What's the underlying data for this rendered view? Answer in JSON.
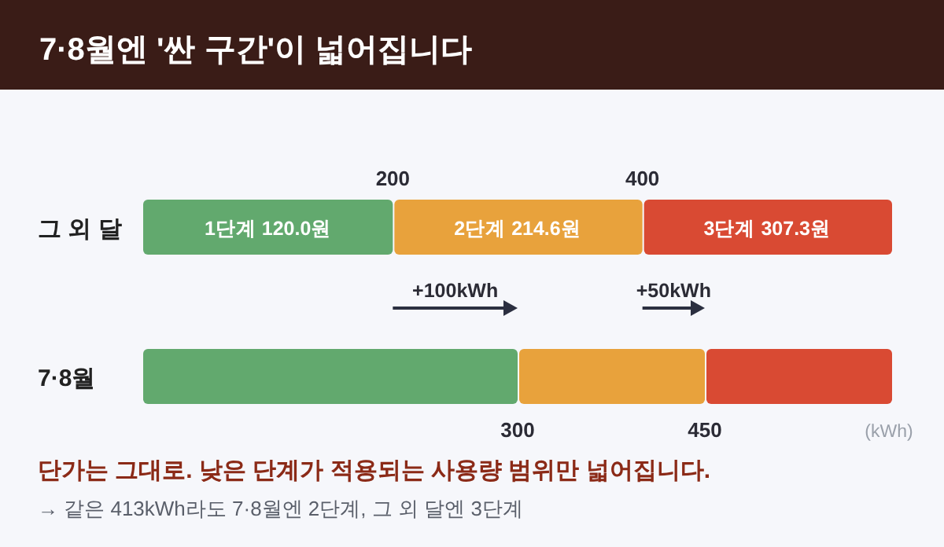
{
  "chart_data": {
    "type": "bar",
    "orientation": "horizontal",
    "stacked": true,
    "title": "7·8월엔 '싼 구간'이 넓어집니다",
    "xlabel": "(kWh)",
    "categories": [
      "그 외 달",
      "7·8월"
    ],
    "series": [
      {
        "color": "#62a96e",
        "values": [
          200,
          300
        ]
      },
      {
        "color": "#e8a23c",
        "values": [
          200,
          150
        ]
      },
      {
        "color": "#d94a33",
        "values": [
          200,
          150
        ]
      }
    ],
    "xlim": [
      0,
      600
    ],
    "xticks": [
      300,
      450
    ],
    "x2lim": [
      0,
      600
    ],
    "x2ticks": [
      200,
      400
    ],
    "annotations": [
      "1단계 120.0원",
      "2단계 214.6원",
      "3단계 307.3원",
      "+100kWh",
      "+50kWh",
      "단가는 그대로. 낮은 단계가 적용되는 사용량 범위만 넓어집니다.",
      "→ 같은 413kWh라도 7·8월엔 2단계, 그 외 달엔 3단계"
    ]
  }
}
